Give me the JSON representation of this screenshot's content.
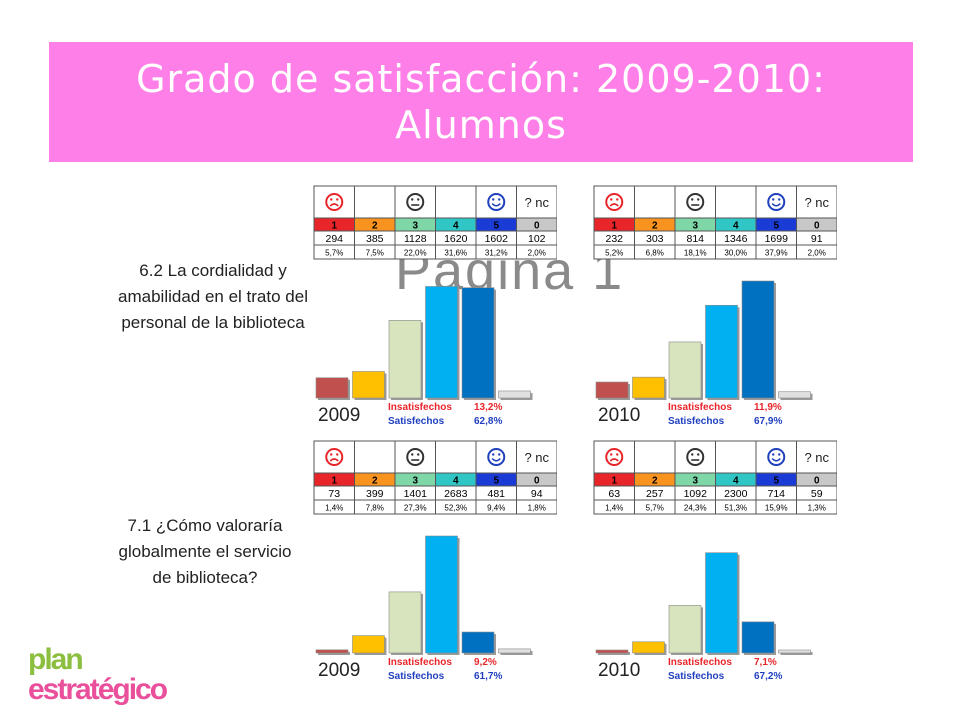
{
  "title": {
    "line1": "Grado de satisfacción: 2009-2010:",
    "line2": "Alumnos"
  },
  "watermark": "Página 1",
  "logo": {
    "line1": "plan",
    "line2": "estratégico"
  },
  "labels": {
    "insat": "Insatisfechos",
    "sat": "Satisfechos",
    "nc": "? nc"
  },
  "header": {
    "codes": [
      "1",
      "2",
      "3",
      "4",
      "5",
      "0"
    ]
  },
  "colors": {
    "codes": [
      "#e8262a",
      "#f7931e",
      "#7fd7a7",
      "#31c6c6",
      "#1a3bd6",
      "#c8c8c8"
    ],
    "bars": [
      "#c0504d",
      "#ffc000",
      "#d7e4bd",
      "#00b0f0",
      "#0070c0",
      "#e0e0e0"
    ],
    "insat": "#e8262a",
    "sat": "#1f3fbf"
  },
  "questions": [
    {
      "label": "6.2 La cordialidad y amabilidad en el trato del personal de la biblioteca"
    },
    {
      "label": "7.1 ¿Cómo valoraría globalmente el servicio de biblioteca?"
    }
  ],
  "panels": [
    {
      "year": "2009",
      "counts": [
        "294",
        "385",
        "1128",
        "1620",
        "1602",
        "102"
      ],
      "pcts": [
        "5,7%",
        "7,5%",
        "22,0%",
        "31,6%",
        "31,2%",
        "2,0%"
      ],
      "insat": "13,2%",
      "sat": "62,8%"
    },
    {
      "year": "2010",
      "counts": [
        "232",
        "303",
        "814",
        "1346",
        "1699",
        "91"
      ],
      "pcts": [
        "5,2%",
        "6,8%",
        "18,1%",
        "30,0%",
        "37,9%",
        "2,0%"
      ],
      "insat": "11,9%",
      "sat": "67,9%"
    },
    {
      "year": "2009",
      "counts": [
        "73",
        "399",
        "1401",
        "2683",
        "481",
        "94"
      ],
      "pcts": [
        "1,4%",
        "7,8%",
        "27,3%",
        "52,3%",
        "9,4%",
        "1,8%"
      ],
      "insat": "9,2%",
      "sat": "61,7%"
    },
    {
      "year": "2010",
      "counts": [
        "63",
        "257",
        "1092",
        "2300",
        "714",
        "59"
      ],
      "pcts": [
        "1,4%",
        "5,7%",
        "24,3%",
        "51,3%",
        "15,9%",
        "1,3%"
      ],
      "insat": "7,1%",
      "sat": "67,2%"
    }
  ],
  "chart_data": [
    {
      "type": "bar",
      "title": "6.2 La cordialidad y amabilidad en el trato del personal de la biblioteca",
      "categories": [
        "1",
        "2",
        "3",
        "4",
        "5",
        "0"
      ],
      "series": [
        {
          "name": "2009",
          "values": [
            294,
            385,
            1128,
            1620,
            1602,
            102
          ]
        },
        {
          "name": "2010",
          "values": [
            232,
            303,
            814,
            1346,
            1699,
            91
          ]
        }
      ]
    },
    {
      "type": "bar",
      "title": "7.1 ¿Cómo valoraría globalmente el servicio de biblioteca?",
      "categories": [
        "1",
        "2",
        "3",
        "4",
        "5",
        "0"
      ],
      "series": [
        {
          "name": "2009",
          "values": [
            73,
            399,
            1401,
            2683,
            481,
            94
          ]
        },
        {
          "name": "2010",
          "values": [
            63,
            257,
            1092,
            2300,
            714,
            59
          ]
        }
      ]
    }
  ]
}
